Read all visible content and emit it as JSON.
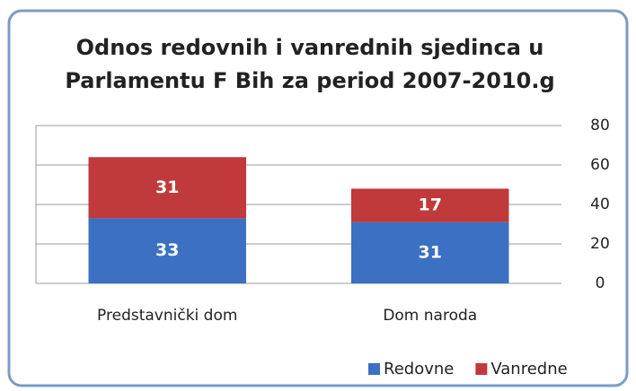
{
  "chart_data": {
    "type": "stacked_bar",
    "title": [
      "Odnos redovnih i vanrednih sjedinca u",
      "Parlamentu F Bih za period 2007-2010.g"
    ],
    "categories": [
      "Predstavnički dom",
      "Dom naroda"
    ],
    "series": [
      {
        "name": "Redovne",
        "color": "#3b70c2",
        "values": [
          33,
          31
        ]
      },
      {
        "name": "Vanredne",
        "color": "#c0393b",
        "values": [
          31,
          17
        ]
      }
    ],
    "ylim": [
      0,
      80
    ],
    "yticks": [
      0,
      20,
      40,
      60,
      80
    ],
    "grid": true,
    "legend": "bottom-right"
  }
}
